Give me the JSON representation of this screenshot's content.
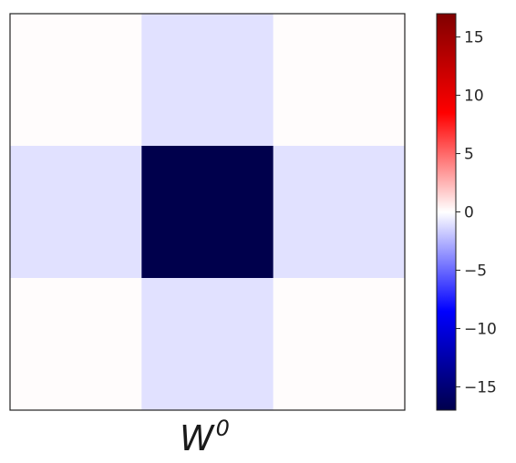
{
  "chart_data": {
    "type": "heatmap",
    "title": "",
    "xlabel_base": "W",
    "xlabel_sup": "0",
    "ylabel": "",
    "rows": 3,
    "cols": 3,
    "matrix": [
      [
        0.1,
        -1,
        0.1
      ],
      [
        -1,
        -17,
        -1
      ],
      [
        0.1,
        -1,
        0.1
      ]
    ],
    "colormap": "seismic",
    "vmin": -17,
    "vmax": 17,
    "colorbar_ticks": [
      15,
      10,
      5,
      0,
      -5,
      -10,
      -15
    ],
    "colorbar_tick_labels": [
      "15",
      "10",
      "5",
      "0",
      "−5",
      "−10",
      "−15"
    ],
    "grid": false,
    "axis_ticks_shown": false
  }
}
